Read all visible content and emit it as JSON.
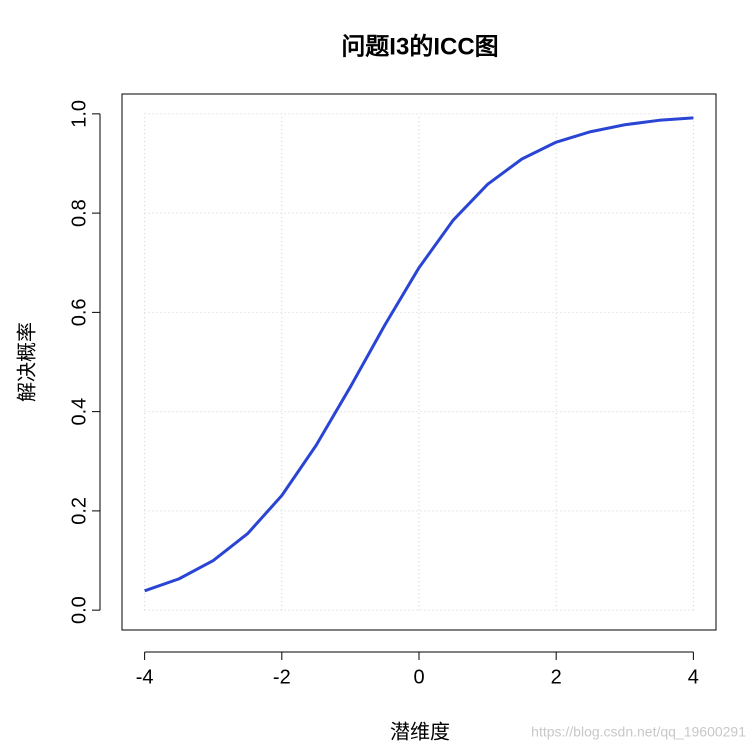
{
  "chart_data": {
    "type": "line",
    "title": "问题I3的ICC图",
    "x_label": "潜维度",
    "y_label": "解决概率",
    "watermark": "https://blog.csdn.net/qq_19600291",
    "x": [
      -4,
      -3.5,
      -3,
      -2.5,
      -2,
      -1.5,
      -1,
      -0.5,
      0,
      0.5,
      1,
      1.5,
      2,
      2.5,
      3,
      3.5,
      4
    ],
    "series": [
      {
        "name": "ICC",
        "color": "#2a45d4",
        "values": [
          0.039,
          0.063,
          0.1,
          0.154,
          0.231,
          0.332,
          0.45,
          0.574,
          0.69,
          0.786,
          0.858,
          0.909,
          0.943,
          0.964,
          0.978,
          0.987,
          0.992
        ]
      }
    ],
    "xlim": [
      -4.33,
      4.33
    ],
    "ylim": [
      -0.04,
      1.04
    ],
    "xticks": [
      -4,
      -2,
      0,
      2,
      4
    ],
    "yticks": [
      {
        "value": 0,
        "label": "0.0"
      },
      {
        "value": 0.2,
        "label": "0.2"
      },
      {
        "value": 0.4,
        "label": "0.4"
      },
      {
        "value": 0.6,
        "label": "0.6"
      },
      {
        "value": 0.8,
        "label": "0.8"
      },
      {
        "value": 1,
        "label": "1.0"
      }
    ],
    "grid": true
  }
}
